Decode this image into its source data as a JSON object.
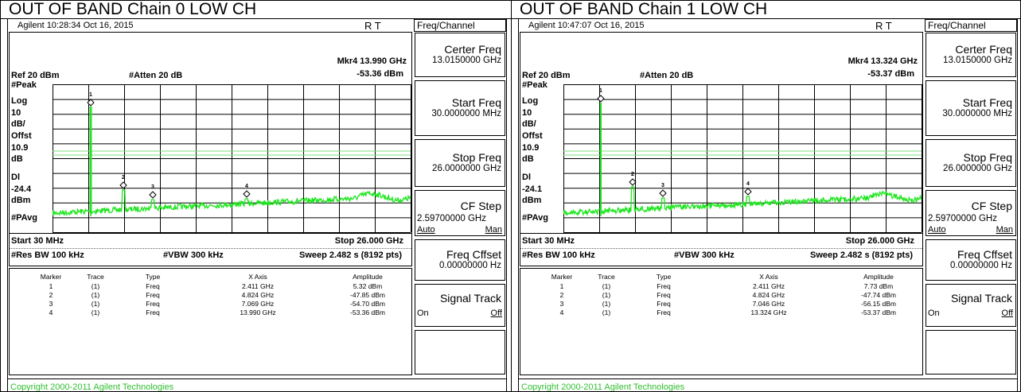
{
  "panels": [
    {
      "heading": "OUT OF BAND Chain 0 LOW CH",
      "status": "Agilent 10:28:34 Oct 16, 2015",
      "rt": "R  T",
      "marker_readout": [
        "Mkr4 13.990 GHz",
        "-53.36 dBm"
      ],
      "ref": "Ref 20 dBm",
      "atten": "#Atten 20 dB",
      "left_labels": [
        "#Peak",
        "Log",
        "10",
        "dB/",
        "Offst",
        "10.9",
        "dB",
        "Dl",
        "-24.4",
        "dBm",
        "#PAvg"
      ],
      "marker_numbers": [
        "1",
        "2",
        "3",
        "4"
      ],
      "start": "Start 30 MHz",
      "stop": "Stop 26.000 GHz",
      "res_bw": "#Res BW 100 kHz",
      "vbw": "#VBW 300 kHz",
      "sweep": "Sweep 2.482 s (8192 pts)",
      "table": {
        "header": [
          "Marker",
          "Trace",
          "Type",
          "X Axis",
          "Amplitude"
        ],
        "rows": [
          [
            "1",
            "(1)",
            "Freq",
            "2.411 GHz",
            "5.32 dBm"
          ],
          [
            "2",
            "(1)",
            "Freq",
            "4.824 GHz",
            "-47.85 dBm"
          ],
          [
            "3",
            "(1)",
            "Freq",
            "7.069 GHz",
            "-54.70 dBm"
          ],
          [
            "4",
            "(1)",
            "Freq",
            "13.990 GHz",
            "-53.36 dBm"
          ]
        ]
      },
      "softkeys": {
        "title": "Freq/Channel",
        "keys": [
          {
            "label": "Certer Freq",
            "value": "13.0150000 GHz"
          },
          {
            "label": "Start Freq",
            "value": "30.0000000 MHz"
          },
          {
            "label": "Stop Freq",
            "value": "26.0000000 GHz"
          },
          {
            "label": "CF Step",
            "value": "2.59700000 GHz",
            "options": [
              "Auto",
              "Man"
            ]
          },
          {
            "label": "Freq Cffset",
            "value": "0.00000000 Hz"
          },
          {
            "label": "Signal Track",
            "options": [
              "On",
              "Off"
            ]
          }
        ]
      },
      "copyright": "Copyright 2000-2011 Agilent Technologies"
    },
    {
      "heading": "OUT OF BAND Chain 1 LOW CH",
      "status": "Agilent 10:47:07 Oct 16, 2015",
      "rt": "R  T",
      "marker_readout": [
        "Mkr4 13.324 GHz",
        "-53.37 dBm"
      ],
      "ref": "Ref 20 dBm",
      "atten": "#Atten 20 dB",
      "left_labels": [
        "#Peak",
        "Log",
        "10",
        "dB/",
        "Offst",
        "10.9",
        "dB",
        "Dl",
        "-24.1",
        "dBm",
        "#PAvg"
      ],
      "marker_numbers": [
        "1",
        "2",
        "3",
        "4"
      ],
      "start": "Start 30 MHz",
      "stop": "Stop 26.000 GHz",
      "res_bw": "#Res BW 100 kHz",
      "vbw": "#VBW 300 kHz",
      "sweep": "Sweep 2.482 s (8192 pts)",
      "table": {
        "header": [
          "Marker",
          "Trace",
          "Type",
          "X Axis",
          "Amplitude"
        ],
        "rows": [
          [
            "1",
            "(1)",
            "Freq",
            "2.411 GHz",
            "7.73 dBm"
          ],
          [
            "2",
            "(1)",
            "Freq",
            "4.824 GHz",
            "-47.74 dBm"
          ],
          [
            "3",
            "(1)",
            "Freq",
            "7.046 GHz",
            "-56.15 dBm"
          ],
          [
            "4",
            "(1)",
            "Freq",
            "13.324 GHz",
            "-53.37 dBm"
          ]
        ]
      },
      "softkeys": {
        "title": "Freq/Channel",
        "keys": [
          {
            "label": "Certer Freq",
            "value": "13.0150000 GHz"
          },
          {
            "label": "Start Freq",
            "value": "30.0000000 MHz"
          },
          {
            "label": "Stop Freq",
            "value": "26.0000000 GHz"
          },
          {
            "label": "CF Step",
            "value": "2.59700000 GHz",
            "options": [
              "Auto",
              "Man"
            ]
          },
          {
            "label": "Freq Cffset",
            "value": "0.00000000 Hz"
          },
          {
            "label": "Signal Track",
            "options": [
              "On",
              "Off"
            ]
          }
        ]
      },
      "copyright": "Copyright 2000-2011 Agilent Technologies"
    }
  ]
}
